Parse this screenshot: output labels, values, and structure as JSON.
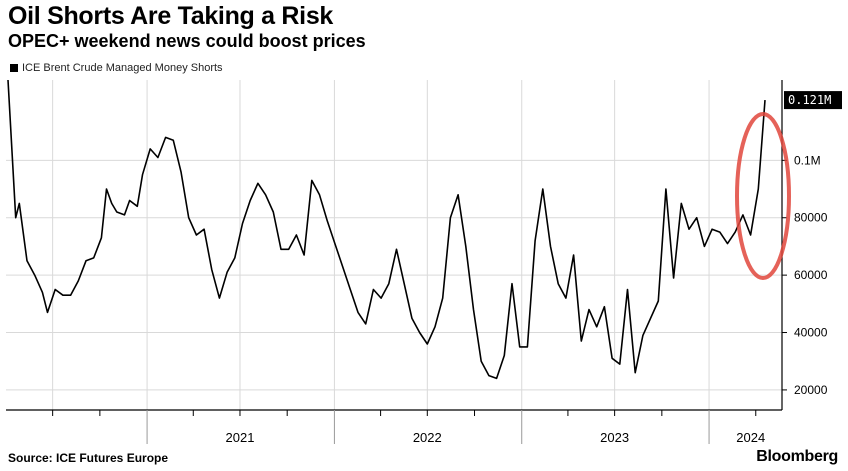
{
  "header": {
    "title": "Oil Shorts Are Taking a Risk",
    "subtitle": "OPEC+ weekend news could boost prices"
  },
  "footer": {
    "source": "Source: ICE Futures Europe",
    "brand": "Bloomberg"
  },
  "colors": {
    "line": "#000000",
    "grid": "#d9d9d9",
    "highlight_circle": "#e0463c"
  },
  "chart_data": {
    "type": "line",
    "title": "Oil Shorts Are Taking a Risk",
    "subtitle": "OPEC+ weekend news could boost prices",
    "legend": [
      "ICE Brent Crude Managed Money Shorts"
    ],
    "legend_position": "top-left",
    "xlabel": "",
    "ylabel": "",
    "x_tick_labels": [
      "2021",
      "2022",
      "2023",
      "2024"
    ],
    "y_ticks": [
      20000,
      40000,
      60000,
      80000,
      100000
    ],
    "y_tick_labels": [
      "20000",
      "40000",
      "60000",
      "80000",
      "0.1M"
    ],
    "ylim": [
      13000,
      128000
    ],
    "grid": true,
    "last_value_label": "0.121M",
    "annotation": "red ellipse highlighting the recent surge in 2024",
    "series": [
      {
        "name": "ICE Brent Crude Managed Money Shorts",
        "points": [
          [
            "2020-04-05",
            128000
          ],
          [
            "2020-04-20",
            80000
          ],
          [
            "2020-04-27",
            85000
          ],
          [
            "2020-05-12",
            65000
          ],
          [
            "2020-05-27",
            60000
          ],
          [
            "2020-06-11",
            54000
          ],
          [
            "2020-06-21",
            47000
          ],
          [
            "2020-07-06",
            55000
          ],
          [
            "2020-07-21",
            53000
          ],
          [
            "2020-08-05",
            53000
          ],
          [
            "2020-08-20",
            58000
          ],
          [
            "2020-09-04",
            65000
          ],
          [
            "2020-09-19",
            66000
          ],
          [
            "2020-10-04",
            73000
          ],
          [
            "2020-10-14",
            90000
          ],
          [
            "2020-10-24",
            85000
          ],
          [
            "2020-11-03",
            82000
          ],
          [
            "2020-11-18",
            81000
          ],
          [
            "2020-11-28",
            86000
          ],
          [
            "2020-12-13",
            84000
          ],
          [
            "2020-12-23",
            95000
          ],
          [
            "2021-01-07",
            104000
          ],
          [
            "2021-01-22",
            101000
          ],
          [
            "2021-02-06",
            108000
          ],
          [
            "2021-02-21",
            107000
          ],
          [
            "2021-03-08",
            96000
          ],
          [
            "2021-03-23",
            80000
          ],
          [
            "2021-04-07",
            74000
          ],
          [
            "2021-04-22",
            76000
          ],
          [
            "2021-05-07",
            62000
          ],
          [
            "2021-05-22",
            52000
          ],
          [
            "2021-06-06",
            61000
          ],
          [
            "2021-06-21",
            66000
          ],
          [
            "2021-07-06",
            78000
          ],
          [
            "2021-07-21",
            86000
          ],
          [
            "2021-08-05",
            92000
          ],
          [
            "2021-08-20",
            88000
          ],
          [
            "2021-09-04",
            82000
          ],
          [
            "2021-09-19",
            69000
          ],
          [
            "2021-10-04",
            69000
          ],
          [
            "2021-10-19",
            74000
          ],
          [
            "2021-11-03",
            67000
          ],
          [
            "2021-11-18",
            93000
          ],
          [
            "2021-12-03",
            88000
          ],
          [
            "2021-12-18",
            79000
          ],
          [
            "2022-01-02",
            71000
          ],
          [
            "2022-01-17",
            63000
          ],
          [
            "2022-02-01",
            55000
          ],
          [
            "2022-02-16",
            47000
          ],
          [
            "2022-03-03",
            43000
          ],
          [
            "2022-03-18",
            55000
          ],
          [
            "2022-04-02",
            52000
          ],
          [
            "2022-04-17",
            57000
          ],
          [
            "2022-05-02",
            69000
          ],
          [
            "2022-05-17",
            57000
          ],
          [
            "2022-06-01",
            45000
          ],
          [
            "2022-06-16",
            40000
          ],
          [
            "2022-07-01",
            36000
          ],
          [
            "2022-07-16",
            42000
          ],
          [
            "2022-07-31",
            52000
          ],
          [
            "2022-08-15",
            80000
          ],
          [
            "2022-08-30",
            88000
          ],
          [
            "2022-09-14",
            70000
          ],
          [
            "2022-09-29",
            48000
          ],
          [
            "2022-10-14",
            30000
          ],
          [
            "2022-10-29",
            25000
          ],
          [
            "2022-11-13",
            24000
          ],
          [
            "2022-11-28",
            32000
          ],
          [
            "2022-12-13",
            57000
          ],
          [
            "2022-12-28",
            35000
          ],
          [
            "2023-01-12",
            35000
          ],
          [
            "2023-01-27",
            72000
          ],
          [
            "2023-02-11",
            90000
          ],
          [
            "2023-02-26",
            70000
          ],
          [
            "2023-03-13",
            57000
          ],
          [
            "2023-03-28",
            52000
          ],
          [
            "2023-04-12",
            67000
          ],
          [
            "2023-04-27",
            37000
          ],
          [
            "2023-05-12",
            48000
          ],
          [
            "2023-05-27",
            42000
          ],
          [
            "2023-06-11",
            49000
          ],
          [
            "2023-06-26",
            31000
          ],
          [
            "2023-07-11",
            29000
          ],
          [
            "2023-07-26",
            55000
          ],
          [
            "2023-08-10",
            26000
          ],
          [
            "2023-08-25",
            39000
          ],
          [
            "2023-09-09",
            45000
          ],
          [
            "2023-09-24",
            51000
          ],
          [
            "2023-10-09",
            90000
          ],
          [
            "2023-10-24",
            59000
          ],
          [
            "2023-11-08",
            85000
          ],
          [
            "2023-11-23",
            76000
          ],
          [
            "2023-12-08",
            80000
          ],
          [
            "2023-12-23",
            70000
          ],
          [
            "2024-01-07",
            76000
          ],
          [
            "2024-01-22",
            75000
          ],
          [
            "2024-02-06",
            71000
          ],
          [
            "2024-02-21",
            75000
          ],
          [
            "2024-03-07",
            81000
          ],
          [
            "2024-03-22",
            74000
          ],
          [
            "2024-04-06",
            90000
          ],
          [
            "2024-04-19",
            121000
          ]
        ]
      }
    ]
  }
}
